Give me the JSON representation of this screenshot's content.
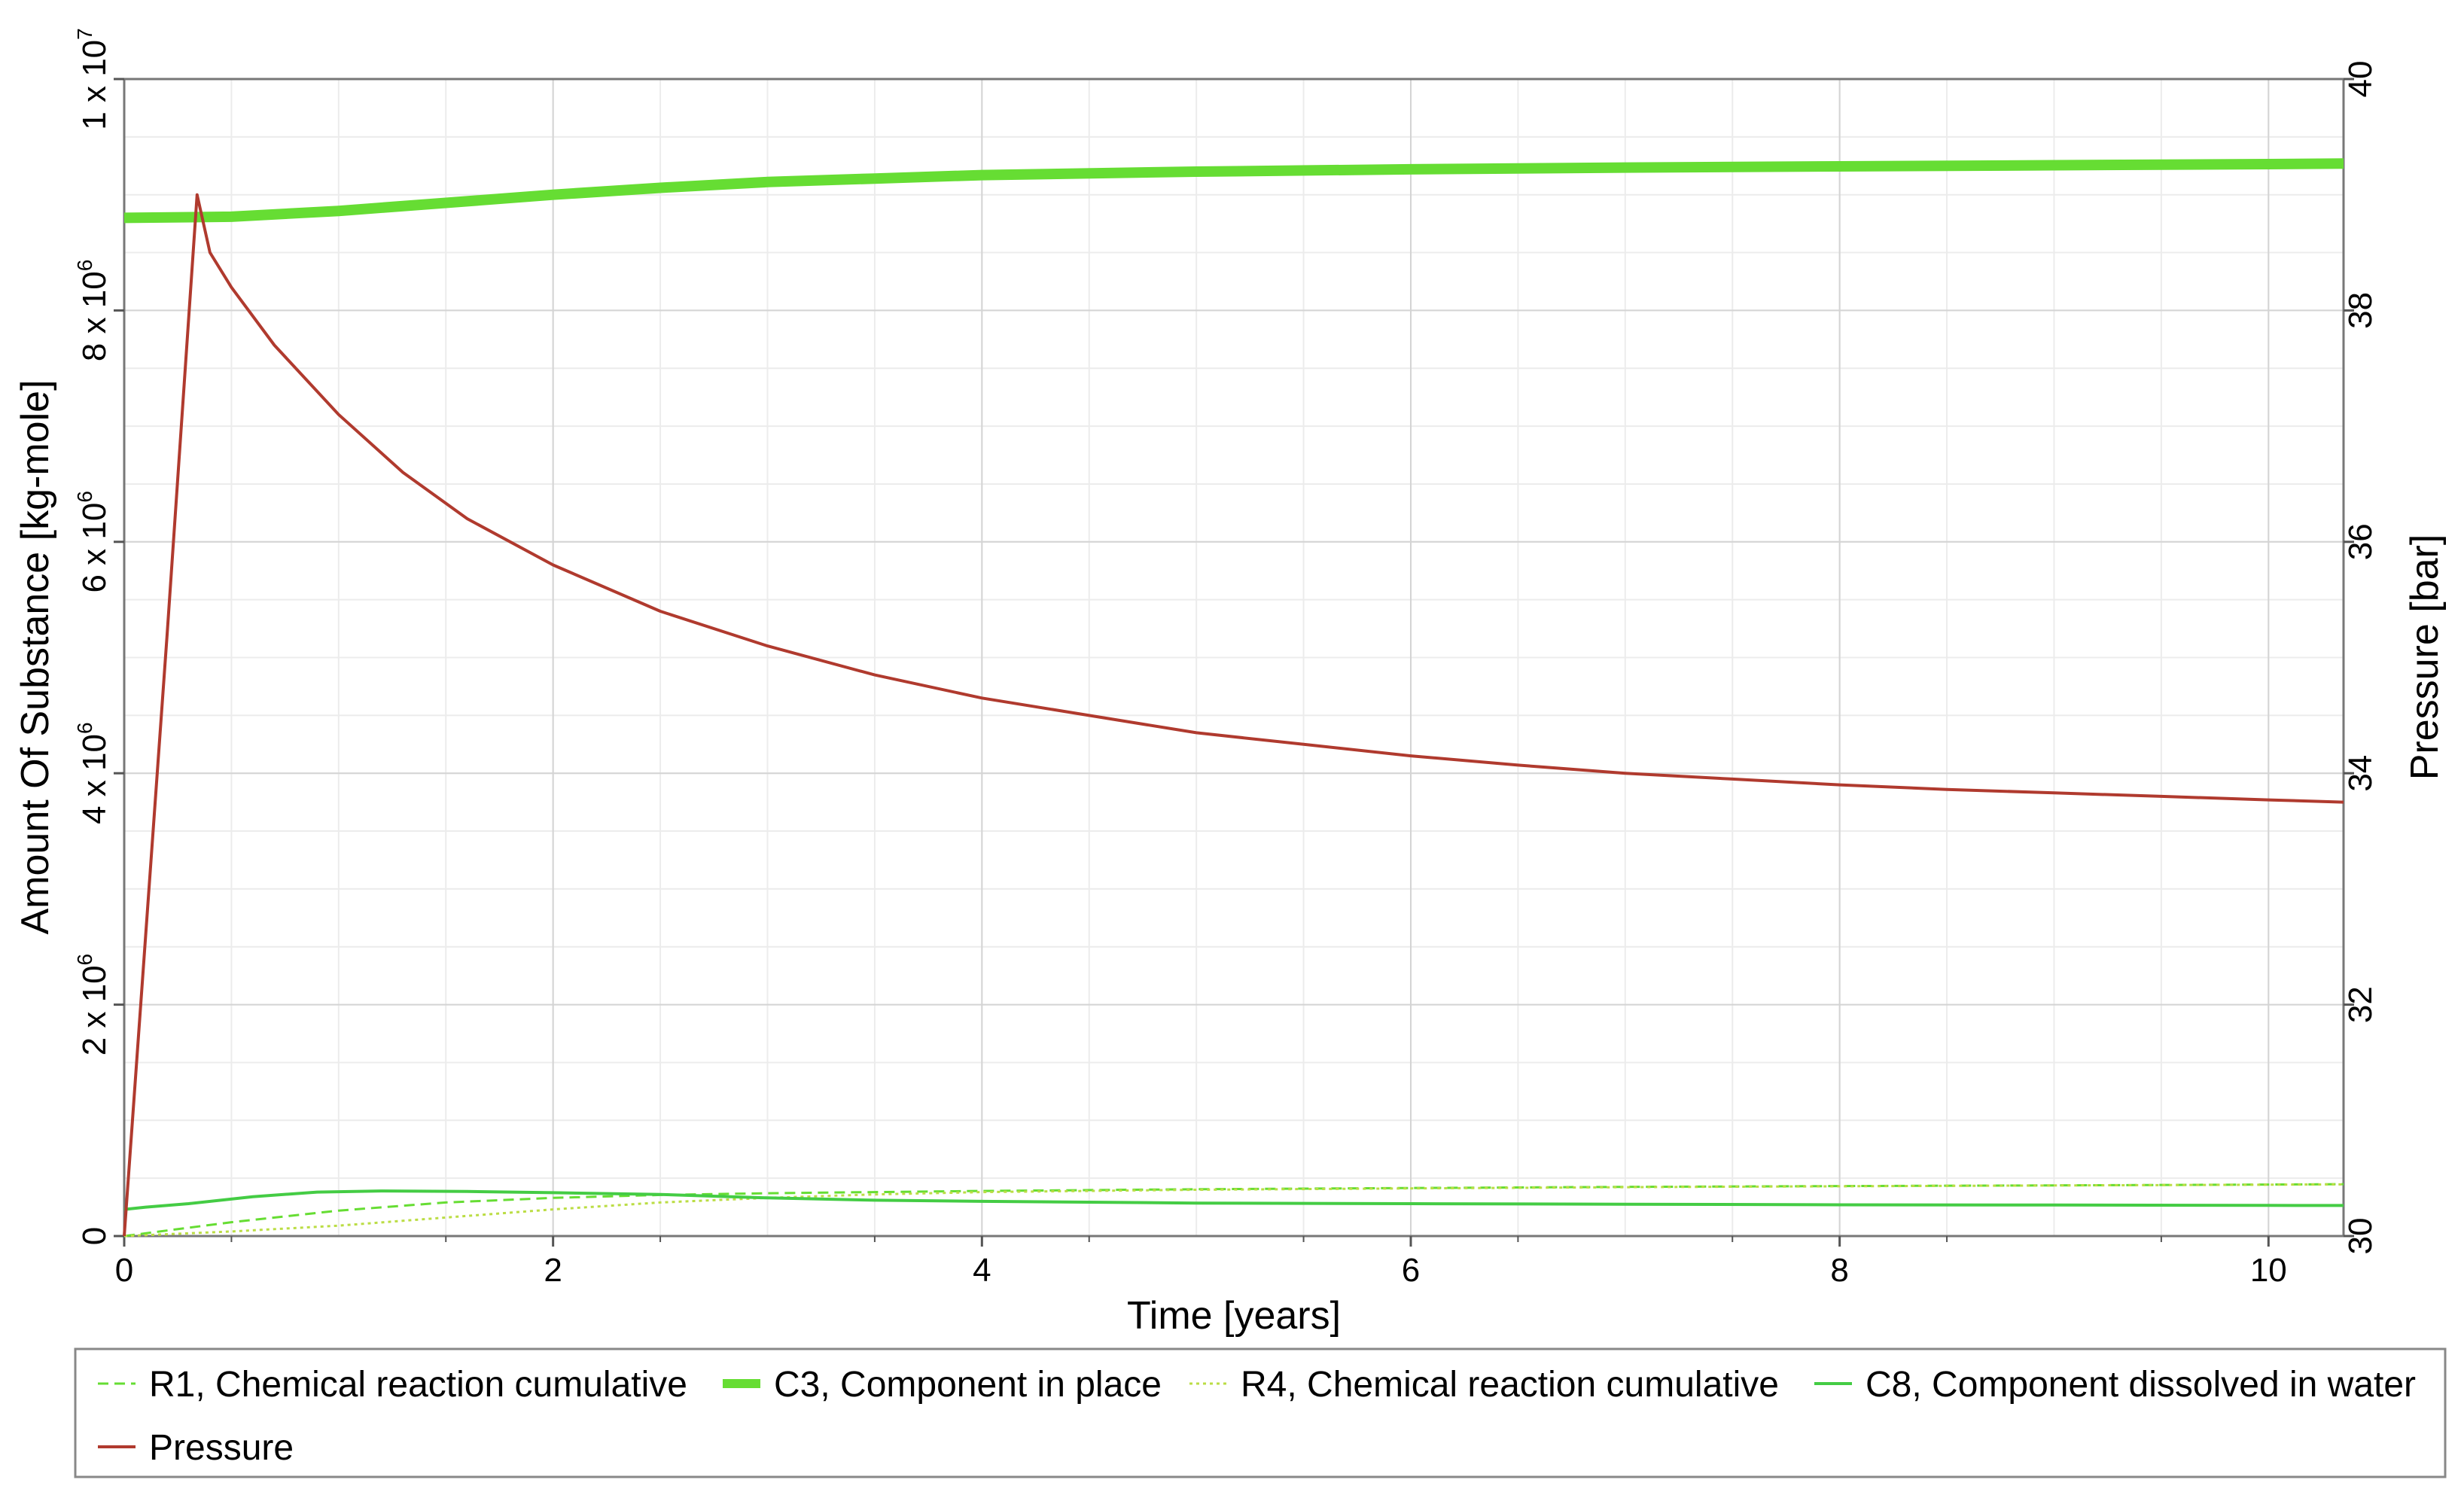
{
  "chart_data": {
    "type": "line",
    "xlabel": "Time [years]",
    "ylabel_left": "Amount Of Substance [kg-mole]",
    "ylabel_right": "Pressure [bar]",
    "xlim": [
      0,
      10.35
    ],
    "ylim_left": [
      0,
      10000000
    ],
    "ylim_right": [
      30,
      40
    ],
    "x_ticks": [
      0,
      2,
      4,
      6,
      8,
      10
    ],
    "x_tick_labels": [
      "0",
      "2",
      "4",
      "6",
      "8",
      "10"
    ],
    "y_left_ticks": [
      {
        "value": 0,
        "mantissa": "0",
        "exp": ""
      },
      {
        "value": 2000000,
        "mantissa": "2 x 10",
        "exp": "6"
      },
      {
        "value": 4000000,
        "mantissa": "4 x 10",
        "exp": "6"
      },
      {
        "value": 6000000,
        "mantissa": "6 x 10",
        "exp": "6"
      },
      {
        "value": 8000000,
        "mantissa": "8 x 10",
        "exp": "6"
      },
      {
        "value": 10000000,
        "mantissa": "1 x 10",
        "exp": "7"
      }
    ],
    "y_right_ticks": [
      30,
      32,
      34,
      36,
      38,
      40
    ],
    "y_right_tick_labels": [
      "30",
      "32",
      "34",
      "36",
      "38",
      "40"
    ],
    "grid": true,
    "legend_position": "bottom",
    "series": [
      {
        "name": "R1, Chemical reaction cumulative",
        "axis": "left",
        "color": "#66dd33",
        "style": "dashed",
        "x": [
          0,
          0.5,
          1,
          1.5,
          2,
          2.5,
          3,
          3.5,
          4,
          5,
          6,
          7,
          8,
          9,
          10,
          10.35
        ],
        "y": [
          0,
          120000,
          220000,
          290000,
          330000,
          355000,
          370000,
          380000,
          390000,
          405000,
          415000,
          425000,
          432000,
          438000,
          445000,
          448000
        ]
      },
      {
        "name": "C3, Component in place",
        "axis": "left",
        "color": "#66dd33",
        "style": "thick",
        "x": [
          0,
          0.5,
          1,
          1.5,
          2,
          2.5,
          3,
          3.5,
          4,
          5,
          6,
          7,
          8,
          9,
          10,
          10.35
        ],
        "y": [
          8800000,
          8810000,
          8860000,
          8930000,
          9000000,
          9060000,
          9110000,
          9140000,
          9170000,
          9200000,
          9220000,
          9235000,
          9245000,
          9255000,
          9265000,
          9270000
        ]
      },
      {
        "name": "R4, Chemical reaction cumulative",
        "axis": "left",
        "color": "#bbdd44",
        "style": "dotted",
        "x": [
          0,
          0.5,
          1,
          1.5,
          2,
          2.5,
          3,
          3.5,
          4,
          5,
          6,
          7,
          8,
          9,
          10,
          10.35
        ],
        "y": [
          0,
          40000,
          90000,
          160000,
          230000,
          290000,
          330000,
          360000,
          380000,
          400000,
          412000,
          422000,
          430000,
          437000,
          444000,
          447000
        ]
      },
      {
        "name": "C8, Component dissolved in water",
        "axis": "left",
        "color": "#44cc44",
        "style": "solid",
        "x": [
          0,
          0.1,
          0.3,
          0.6,
          0.9,
          1.2,
          1.6,
          2.0,
          2.5,
          3.0,
          3.5,
          4,
          5,
          6,
          7,
          8,
          9,
          10,
          10.35
        ],
        "y": [
          230000,
          250000,
          280000,
          340000,
          380000,
          390000,
          385000,
          375000,
          360000,
          330000,
          310000,
          300000,
          285000,
          280000,
          275000,
          270000,
          268000,
          265000,
          264000
        ]
      },
      {
        "name": "Pressure",
        "axis": "right",
        "color": "#b03a2e",
        "style": "solid",
        "x": [
          0,
          0.1,
          0.2,
          0.34,
          0.4,
          0.5,
          0.7,
          1.0,
          1.3,
          1.6,
          2.0,
          2.5,
          3.0,
          3.5,
          4.0,
          4.5,
          5.0,
          5.5,
          6.0,
          6.5,
          7.0,
          7.5,
          8.0,
          8.5,
          9.0,
          9.5,
          10.0,
          10.35
        ],
        "y": [
          30,
          32.6,
          35.2,
          39.0,
          38.5,
          38.2,
          37.7,
          37.1,
          36.6,
          36.2,
          35.8,
          35.4,
          35.1,
          34.85,
          34.65,
          34.5,
          34.35,
          34.25,
          34.15,
          34.07,
          34.0,
          33.95,
          33.9,
          33.86,
          33.83,
          33.8,
          33.77,
          33.75
        ]
      }
    ]
  }
}
